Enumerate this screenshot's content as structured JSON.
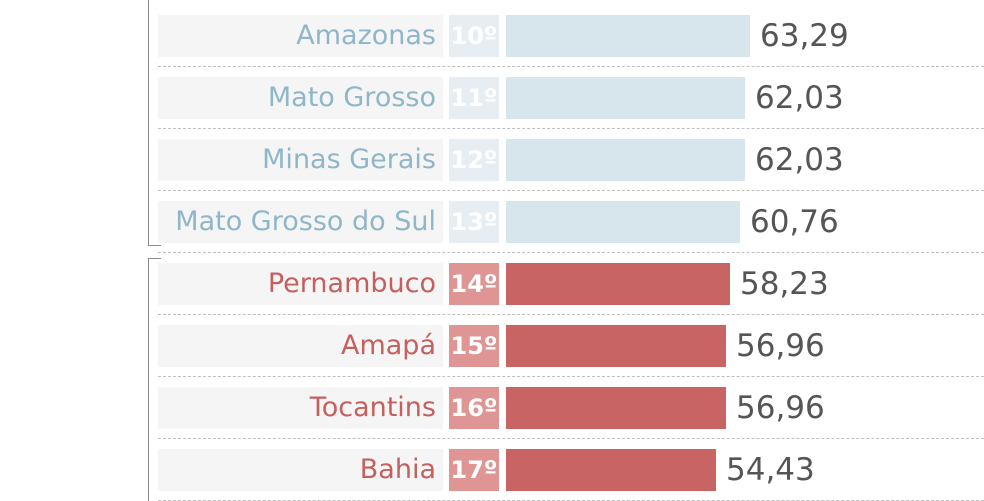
{
  "chart_data": {
    "type": "bar",
    "orientation": "horizontal",
    "categories": [
      "Amazonas",
      "Mato Grosso",
      "Minas Gerais",
      "Mato Grosso do Sul",
      "Pernambuco",
      "Amapá",
      "Tocantins",
      "Bahia"
    ],
    "ranks": [
      "10º",
      "11º",
      "12º",
      "13º",
      "14º",
      "15º",
      "16º",
      "17º"
    ],
    "values": [
      63.29,
      62.03,
      62.03,
      60.76,
      58.23,
      56.96,
      56.96,
      54.43
    ],
    "value_labels": [
      "63,29",
      "62,03",
      "62,03",
      "60,76",
      "58,23",
      "56,96",
      "56,96",
      "54,43"
    ],
    "groups": [
      "light",
      "light",
      "light",
      "light",
      "red",
      "red",
      "red",
      "red"
    ],
    "colors": {
      "light_bar": "#d7e5ed",
      "light_label": "#8fb6c9",
      "red_bar": "#c96464",
      "red_label": "#c4605e"
    }
  }
}
